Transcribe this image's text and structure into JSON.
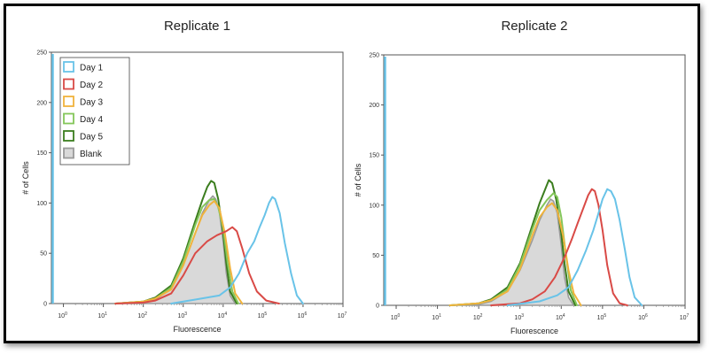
{
  "chart_data": [
    {
      "type": "line",
      "title": "Replicate 1",
      "xlabel": "Fluorescence",
      "ylabel": "# of Cells",
      "xscale": "log",
      "xlim": [
        0.5,
        10000000
      ],
      "ylim": [
        0,
        250
      ],
      "xticks": [
        {
          "value": 1,
          "base": "10",
          "exp": "0"
        },
        {
          "value": 10,
          "base": "10",
          "exp": "1"
        },
        {
          "value": 100,
          "base": "10",
          "exp": "2"
        },
        {
          "value": 1000,
          "base": "10",
          "exp": "3"
        },
        {
          "value": 10000,
          "base": "10",
          "exp": "4"
        },
        {
          "value": 100000,
          "base": "10",
          "exp": "5"
        },
        {
          "value": 1000000,
          "base": "10",
          "exp": "6"
        },
        {
          "value": 10000000,
          "base": "10",
          "exp": "7"
        }
      ],
      "yticks": [
        "0",
        "50",
        "100",
        "150",
        "200",
        "250"
      ],
      "legend_position": "top-left",
      "series": [
        {
          "name": "Blank",
          "color": "#9a9a9a",
          "fill": "#d9d9d9",
          "points": [
            [
              20,
              0
            ],
            [
              100,
              1
            ],
            [
              200,
              4
            ],
            [
              500,
              15
            ],
            [
              1000,
              38
            ],
            [
              2000,
              70
            ],
            [
              3000,
              90
            ],
            [
              4500,
              103
            ],
            [
              5500,
              107
            ],
            [
              6500,
              104
            ],
            [
              8000,
              92
            ],
            [
              10000,
              62
            ],
            [
              12000,
              30
            ],
            [
              15000,
              8
            ],
            [
              20000,
              0
            ]
          ]
        },
        {
          "name": "Day 5",
          "color": "#3b7d1e",
          "points": [
            [
              20,
              0
            ],
            [
              100,
              2
            ],
            [
              200,
              6
            ],
            [
              500,
              18
            ],
            [
              1000,
              45
            ],
            [
              2000,
              82
            ],
            [
              3000,
              103
            ],
            [
              4000,
              116
            ],
            [
              5000,
              122
            ],
            [
              6000,
              120
            ],
            [
              7500,
              104
            ],
            [
              10000,
              70
            ],
            [
              12000,
              40
            ],
            [
              15000,
              12
            ],
            [
              22000,
              0
            ]
          ]
        },
        {
          "name": "Day 4",
          "color": "#84c65a",
          "points": [
            [
              20,
              0
            ],
            [
              100,
              2
            ],
            [
              200,
              5
            ],
            [
              500,
              16
            ],
            [
              1000,
              42
            ],
            [
              2000,
              78
            ],
            [
              3000,
              96
            ],
            [
              4500,
              103
            ],
            [
              6000,
              104
            ],
            [
              7500,
              96
            ],
            [
              10000,
              75
            ],
            [
              13000,
              40
            ],
            [
              17000,
              12
            ],
            [
              24000,
              0
            ]
          ]
        },
        {
          "name": "Day 3",
          "color": "#f0b33c",
          "points": [
            [
              20,
              0
            ],
            [
              100,
              2
            ],
            [
              200,
              5
            ],
            [
              500,
              14
            ],
            [
              1000,
              38
            ],
            [
              2000,
              70
            ],
            [
              3000,
              88
            ],
            [
              4500,
              98
            ],
            [
              6000,
              102
            ],
            [
              8000,
              95
            ],
            [
              11000,
              70
            ],
            [
              15000,
              35
            ],
            [
              20000,
              10
            ],
            [
              30000,
              0
            ]
          ]
        },
        {
          "name": "Day 2",
          "color": "#d94a46",
          "points": [
            [
              20,
              0
            ],
            [
              100,
              1
            ],
            [
              200,
              3
            ],
            [
              500,
              10
            ],
            [
              1000,
              28
            ],
            [
              2000,
              50
            ],
            [
              4000,
              62
            ],
            [
              7000,
              68
            ],
            [
              12000,
              72
            ],
            [
              17000,
              76
            ],
            [
              22000,
              72
            ],
            [
              30000,
              55
            ],
            [
              45000,
              30
            ],
            [
              70000,
              12
            ],
            [
              120000,
              3
            ],
            [
              250000,
              0
            ]
          ]
        },
        {
          "name": "Day 1",
          "color": "#69c3e8",
          "points": [
            [
              500,
              0
            ],
            [
              2000,
              4
            ],
            [
              8000,
              8
            ],
            [
              15000,
              16
            ],
            [
              25000,
              30
            ],
            [
              40000,
              50
            ],
            [
              60000,
              62
            ],
            [
              80000,
              75
            ],
            [
              110000,
              88
            ],
            [
              140000,
              100
            ],
            [
              170000,
              106
            ],
            [
              200000,
              104
            ],
            [
              260000,
              90
            ],
            [
              350000,
              60
            ],
            [
              500000,
              30
            ],
            [
              700000,
              8
            ],
            [
              1000000,
              0
            ]
          ]
        }
      ]
    },
    {
      "type": "line",
      "title": "Replicate 2",
      "xlabel": "Fluorescence",
      "ylabel": "# of Cells",
      "xscale": "log",
      "xlim": [
        0.5,
        10000000
      ],
      "ylim": [
        0,
        250
      ],
      "xticks": [
        {
          "value": 1,
          "base": "10",
          "exp": "0"
        },
        {
          "value": 10,
          "base": "10",
          "exp": "1"
        },
        {
          "value": 100,
          "base": "10",
          "exp": "2"
        },
        {
          "value": 1000,
          "base": "10",
          "exp": "3"
        },
        {
          "value": 10000,
          "base": "10",
          "exp": "4"
        },
        {
          "value": 100000,
          "base": "10",
          "exp": "5"
        },
        {
          "value": 1000000,
          "base": "10",
          "exp": "6"
        },
        {
          "value": 10000000,
          "base": "10",
          "exp": "7"
        }
      ],
      "yticks": [
        "0",
        "50",
        "100",
        "150",
        "200",
        "250"
      ],
      "legend_position": "none",
      "series": [
        {
          "name": "Blank",
          "color": "#9a9a9a",
          "fill": "#d9d9d9",
          "points": [
            [
              20,
              0
            ],
            [
              100,
              1
            ],
            [
              200,
              4
            ],
            [
              500,
              14
            ],
            [
              1000,
              35
            ],
            [
              2000,
              65
            ],
            [
              3000,
              85
            ],
            [
              4500,
              100
            ],
            [
              5500,
              106
            ],
            [
              6500,
              104
            ],
            [
              8000,
              92
            ],
            [
              10000,
              60
            ],
            [
              12000,
              28
            ],
            [
              15000,
              8
            ],
            [
              20000,
              0
            ]
          ]
        },
        {
          "name": "Day 5",
          "color": "#3b7d1e",
          "points": [
            [
              20,
              0
            ],
            [
              100,
              2
            ],
            [
              200,
              6
            ],
            [
              500,
              18
            ],
            [
              1000,
              42
            ],
            [
              2000,
              80
            ],
            [
              3000,
              102
            ],
            [
              4000,
              115
            ],
            [
              5000,
              125
            ],
            [
              6000,
              122
            ],
            [
              7500,
              106
            ],
            [
              10000,
              72
            ],
            [
              12000,
              42
            ],
            [
              15000,
              14
            ],
            [
              22000,
              0
            ]
          ]
        },
        {
          "name": "Day 4",
          "color": "#84c65a",
          "points": [
            [
              20,
              0
            ],
            [
              100,
              2
            ],
            [
              200,
              5
            ],
            [
              500,
              16
            ],
            [
              1000,
              40
            ],
            [
              2000,
              76
            ],
            [
              3000,
              95
            ],
            [
              4500,
              105
            ],
            [
              6500,
              112
            ],
            [
              8000,
              108
            ],
            [
              10000,
              88
            ],
            [
              13000,
              50
            ],
            [
              17000,
              15
            ],
            [
              24000,
              0
            ]
          ]
        },
        {
          "name": "Day 3",
          "color": "#f0b33c",
          "points": [
            [
              20,
              0
            ],
            [
              100,
              2
            ],
            [
              200,
              5
            ],
            [
              500,
              14
            ],
            [
              1000,
              36
            ],
            [
              2000,
              70
            ],
            [
              3000,
              88
            ],
            [
              4500,
              98
            ],
            [
              6000,
              102
            ],
            [
              8000,
              95
            ],
            [
              11000,
              70
            ],
            [
              15000,
              35
            ],
            [
              20000,
              12
            ],
            [
              30000,
              0
            ]
          ]
        },
        {
          "name": "Day 2",
          "color": "#d94a46",
          "points": [
            [
              200,
              0
            ],
            [
              1000,
              2
            ],
            [
              2000,
              6
            ],
            [
              4000,
              14
            ],
            [
              7000,
              28
            ],
            [
              12000,
              48
            ],
            [
              18000,
              66
            ],
            [
              25000,
              82
            ],
            [
              35000,
              98
            ],
            [
              45000,
              110
            ],
            [
              55000,
              116
            ],
            [
              65000,
              114
            ],
            [
              80000,
              100
            ],
            [
              100000,
              75
            ],
            [
              130000,
              40
            ],
            [
              180000,
              12
            ],
            [
              260000,
              2
            ],
            [
              400000,
              0
            ]
          ]
        },
        {
          "name": "Day 1",
          "color": "#69c3e8",
          "points": [
            [
              500,
              0
            ],
            [
              3000,
              4
            ],
            [
              8000,
              10
            ],
            [
              15000,
              18
            ],
            [
              25000,
              35
            ],
            [
              40000,
              55
            ],
            [
              60000,
              75
            ],
            [
              80000,
              92
            ],
            [
              100000,
              106
            ],
            [
              130000,
              116
            ],
            [
              160000,
              114
            ],
            [
              200000,
              106
            ],
            [
              260000,
              85
            ],
            [
              350000,
              55
            ],
            [
              450000,
              28
            ],
            [
              600000,
              8
            ],
            [
              900000,
              0
            ]
          ]
        }
      ]
    }
  ]
}
